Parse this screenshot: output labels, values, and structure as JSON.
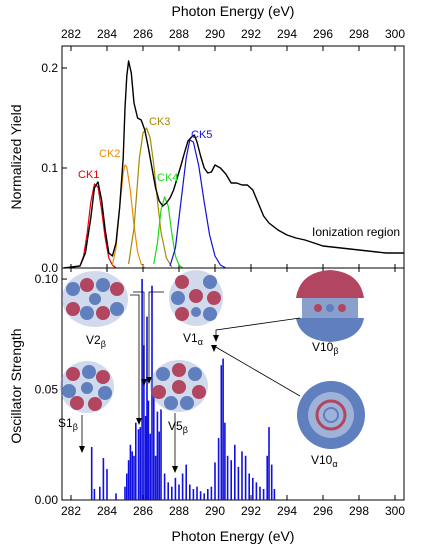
{
  "chart_data": [
    {
      "type": "line",
      "panel": "top",
      "xlabel": "Photon Energy (eV)",
      "ylabel": "Normalized Yield",
      "xlim": [
        281.5,
        300.5
      ],
      "ylim": [
        0,
        0.222
      ],
      "x_ticks": [
        282,
        284,
        286,
        288,
        290,
        292,
        294,
        296,
        298,
        300
      ],
      "y_ticks": [
        0.0,
        0.1,
        0.2
      ],
      "y_tick_labels": [
        "0.0",
        "0.1",
        "0.2"
      ],
      "grid": false,
      "annotation": "Ionization region",
      "series": [
        {
          "name": "CK1",
          "color": "#e8000b",
          "x": [
            282.5,
            282.7,
            282.9,
            283.1,
            283.3,
            283.5,
            283.7,
            283.9,
            284.1,
            284.3,
            284.5
          ],
          "y": [
            0.002,
            0.012,
            0.035,
            0.066,
            0.084,
            0.081,
            0.058,
            0.03,
            0.01,
            0.003,
            0.0
          ]
        },
        {
          "name": "CK2",
          "color": "#f08c00",
          "x": [
            284.3,
            284.5,
            284.7,
            284.9,
            285.0,
            285.1,
            285.3,
            285.5,
            285.7,
            285.9,
            286.1
          ],
          "y": [
            0.003,
            0.02,
            0.06,
            0.095,
            0.103,
            0.101,
            0.077,
            0.043,
            0.016,
            0.004,
            0.0
          ]
        },
        {
          "name": "CK3",
          "color": "#a38b00",
          "x": [
            285.2,
            285.5,
            285.8,
            286.0,
            286.2,
            286.4,
            286.6,
            286.8,
            287.0,
            287.3,
            287.6
          ],
          "y": [
            0.004,
            0.04,
            0.11,
            0.135,
            0.14,
            0.13,
            0.103,
            0.068,
            0.036,
            0.01,
            0.001
          ]
        },
        {
          "name": "CK4",
          "color": "#1ed81e",
          "x": [
            286.6,
            286.8,
            287.0,
            287.2,
            287.4,
            287.6,
            287.8,
            288.0,
            288.2
          ],
          "y": [
            0.004,
            0.025,
            0.058,
            0.071,
            0.062,
            0.035,
            0.012,
            0.003,
            0.0
          ]
        },
        {
          "name": "CK5",
          "color": "#1111dd",
          "x": [
            287.5,
            287.8,
            288.1,
            288.4,
            288.6,
            288.8,
            289.1,
            289.4,
            289.7,
            290.0,
            290.3,
            290.6
          ],
          "y": [
            0.002,
            0.02,
            0.065,
            0.11,
            0.128,
            0.126,
            0.102,
            0.066,
            0.033,
            0.012,
            0.003,
            0.0
          ]
        },
        {
          "name": "",
          "color": "#000000",
          "x": [
            281.6,
            282.5,
            282.8,
            283.1,
            283.3,
            283.5,
            283.7,
            283.9,
            284.1,
            284.3,
            284.5,
            284.7,
            284.9,
            285.0,
            285.1,
            285.2,
            285.35,
            285.5,
            285.7,
            285.9,
            286.1,
            286.3,
            286.5,
            286.7,
            286.9,
            287.1,
            287.3,
            287.5,
            287.7,
            287.9,
            288.1,
            288.3,
            288.5,
            288.7,
            288.85,
            289.0,
            289.2,
            289.4,
            289.6,
            289.8,
            290.0,
            290.3,
            290.6,
            290.9,
            291.2,
            291.5,
            291.8,
            292.1,
            292.4,
            292.7,
            293.0,
            293.5,
            294.0,
            294.5,
            295.0,
            295.5,
            296.0,
            296.5,
            297.0,
            297.5,
            298.0,
            298.5,
            299.0,
            299.5,
            300.0,
            300.5
          ],
          "y": [
            0.0,
            0.002,
            0.015,
            0.05,
            0.08,
            0.086,
            0.068,
            0.038,
            0.015,
            0.012,
            0.025,
            0.06,
            0.11,
            0.16,
            0.192,
            0.207,
            0.195,
            0.165,
            0.15,
            0.148,
            0.138,
            0.12,
            0.1,
            0.08,
            0.067,
            0.062,
            0.065,
            0.07,
            0.078,
            0.09,
            0.102,
            0.115,
            0.127,
            0.131,
            0.133,
            0.126,
            0.112,
            0.1,
            0.095,
            0.096,
            0.103,
            0.1,
            0.094,
            0.085,
            0.085,
            0.083,
            0.083,
            0.078,
            0.065,
            0.052,
            0.045,
            0.038,
            0.033,
            0.03,
            0.028,
            0.025,
            0.022,
            0.021,
            0.02,
            0.019,
            0.018,
            0.017,
            0.016,
            0.015,
            0.015,
            0.015
          ]
        }
      ]
    },
    {
      "type": "bar",
      "panel": "bottom",
      "xlabel": "Photon Energy (eV)",
      "ylabel": "Oscillator Strength",
      "xlim": [
        281.5,
        300.5
      ],
      "ylim": [
        0,
        0.105
      ],
      "x_ticks": [
        282,
        284,
        286,
        288,
        290,
        292,
        294,
        296,
        298,
        300
      ],
      "y_ticks": [
        0.0,
        0.05,
        0.1
      ],
      "y_tick_labels": [
        "0.00",
        "0.05",
        "0.10"
      ],
      "grid": false,
      "color": "#1010e0",
      "labels": [
        "V2β",
        "V1α",
        "V10β",
        "S1β",
        "V5β",
        "V10α"
      ],
      "x": [
        283.15,
        283.3,
        283.6,
        283.8,
        284.0,
        284.5,
        285.0,
        285.1,
        285.2,
        285.3,
        285.4,
        285.5,
        285.6,
        285.75,
        285.85,
        285.95,
        286.05,
        286.15,
        286.22,
        286.3,
        286.4,
        286.5,
        286.6,
        286.7,
        286.8,
        286.9,
        287.0,
        287.2,
        287.4,
        287.6,
        287.8,
        288.0,
        288.2,
        288.4,
        288.6,
        288.8,
        289.0,
        289.2,
        289.4,
        289.6,
        289.8,
        290.0,
        290.2,
        290.35,
        290.45,
        290.55,
        290.7,
        290.9,
        291.1,
        291.3,
        291.5,
        291.7,
        291.9,
        292.1,
        292.3,
        292.5,
        292.7,
        292.9,
        293.0,
        293.15,
        293.3
      ],
      "values": [
        0.024,
        0.005,
        0.006,
        0.019,
        0.014,
        0.003,
        0.006,
        0.012,
        0.018,
        0.025,
        0.022,
        0.02,
        0.035,
        0.032,
        0.033,
        0.1,
        0.07,
        0.038,
        0.083,
        0.045,
        0.03,
        0.097,
        0.05,
        0.02,
        0.04,
        0.031,
        0.041,
        0.012,
        0.008,
        0.006,
        0.01,
        0.007,
        0.012,
        0.016,
        0.007,
        0.005,
        0.006,
        0.004,
        0.003,
        0.005,
        0.006,
        0.017,
        0.028,
        0.061,
        0.064,
        0.035,
        0.02,
        0.018,
        0.025,
        0.015,
        0.022,
        0.02,
        0.012,
        0.01,
        0.008,
        0.006,
        0.005,
        0.02,
        0.033,
        0.016,
        0.005
      ]
    }
  ],
  "x_ticks": [
    282,
    284,
    286,
    288,
    290,
    292,
    294,
    296,
    298,
    300
  ],
  "top_y_ticks": [
    0.0,
    0.1,
    0.2
  ],
  "top_y_tick_labels": [
    "0.0",
    "0.1",
    "0.2"
  ],
  "bottom_y_ticks": [
    0.0,
    0.05,
    0.1
  ],
  "bottom_y_tick_labels": [
    "0.00",
    "0.05",
    "0.10"
  ],
  "peak_labels": [
    {
      "text": "CK1",
      "color": "#e8000b"
    },
    {
      "text": "CK2",
      "color": "#f08c00"
    },
    {
      "text": "CK3",
      "color": "#a38b00"
    },
    {
      "text": "CK4",
      "color": "#1ed81e"
    },
    {
      "text": "CK5",
      "color": "#1111dd"
    }
  ],
  "orbital_labels": [
    {
      "base": "V2",
      "sub": "β"
    },
    {
      "base": "V1",
      "sub": "α"
    },
    {
      "base": "V10",
      "sub": "β"
    },
    {
      "base": "S1",
      "sub": "β"
    },
    {
      "base": "V5",
      "sub": "β"
    },
    {
      "base": "V10",
      "sub": "α"
    }
  ],
  "icons": [
    "orbital-lobe-icon",
    "orbital-ring-icon"
  ]
}
